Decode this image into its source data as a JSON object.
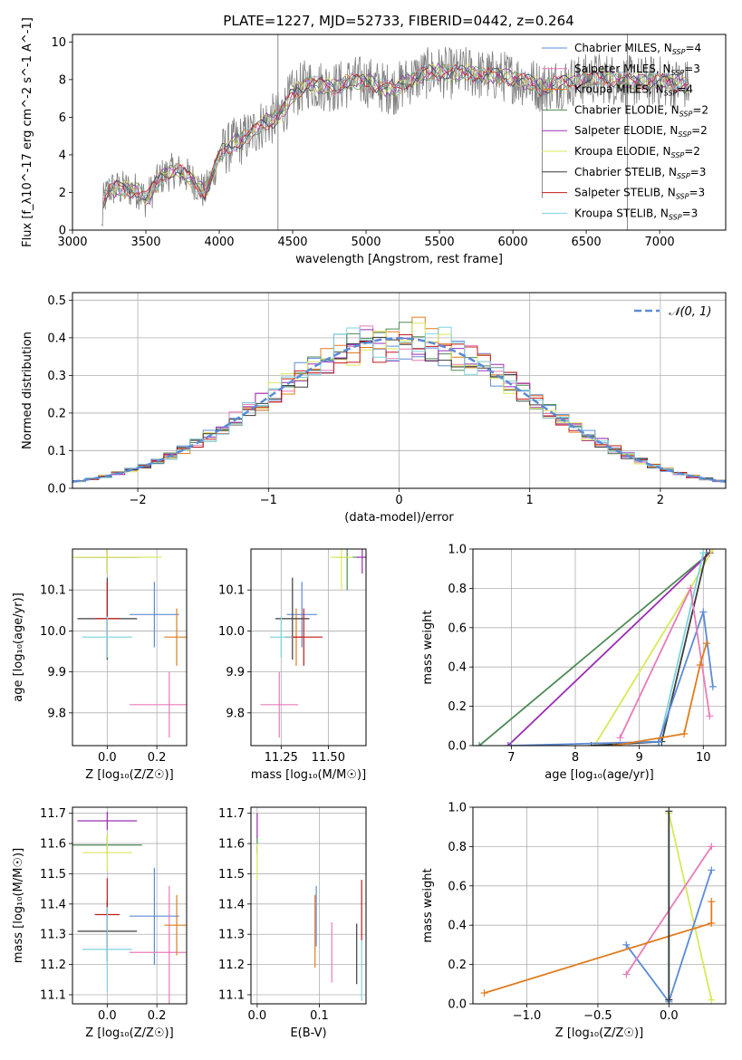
{
  "chart_data": [
    {
      "type": "line",
      "title": "PLATE=1227, MJD=52733, FIBERID=0442, z=0.264",
      "xlabel": "wavelength [Angstrom, rest frame]",
      "ylabel": "Flux [f_λ10^-17 erg cm^-2 s^-1 A^-1]",
      "xlim": [
        3000,
        7450
      ],
      "ylim": [
        0,
        10.4
      ],
      "xticks": [
        "3000",
        "3500",
        "4000",
        "4500",
        "5000",
        "5500",
        "6000",
        "6500",
        "7000"
      ],
      "yticks": [
        "0",
        "2",
        "4",
        "6",
        "8",
        "10"
      ],
      "legend_position": "right",
      "spectrum_knots": [
        [
          3200,
          0
        ],
        [
          3210,
          1.5
        ],
        [
          3250,
          2.2
        ],
        [
          3350,
          2.2
        ],
        [
          3450,
          2.1
        ],
        [
          3500,
          1.6
        ],
        [
          3600,
          2.8
        ],
        [
          3700,
          3.2
        ],
        [
          3800,
          2.8
        ],
        [
          3900,
          2.0
        ],
        [
          3950,
          2.8
        ],
        [
          4000,
          4.0
        ],
        [
          4100,
          4.6
        ],
        [
          4200,
          5.0
        ],
        [
          4300,
          5.7
        ],
        [
          4400,
          6.0
        ],
        [
          4500,
          7.2
        ],
        [
          4600,
          7.8
        ],
        [
          4700,
          7.7
        ],
        [
          4800,
          7.6
        ],
        [
          4900,
          7.9
        ],
        [
          5000,
          7.9
        ],
        [
          5100,
          7.6
        ],
        [
          5200,
          7.5
        ],
        [
          5300,
          8.0
        ],
        [
          5400,
          8.3
        ],
        [
          5500,
          8.4
        ],
        [
          5600,
          8.3
        ],
        [
          5700,
          8.4
        ],
        [
          5800,
          8.2
        ],
        [
          5900,
          8.2
        ],
        [
          6000,
          8.1
        ],
        [
          6100,
          7.9
        ],
        [
          6200,
          7.6
        ],
        [
          6300,
          7.8
        ],
        [
          6400,
          7.9
        ],
        [
          6500,
          8.0
        ],
        [
          6600,
          8.1
        ],
        [
          6700,
          8.0
        ],
        [
          6800,
          7.9
        ],
        [
          6900,
          7.9
        ],
        [
          7000,
          7.9
        ],
        [
          7100,
          7.8
        ],
        [
          7200,
          7.7
        ]
      ],
      "series": [
        {
          "name": "Chabrier MILES",
          "nssp": "4",
          "color": "#5b8bd6"
        },
        {
          "name": "Salpeter MILES",
          "nssp": "3",
          "color": "#e87bb8"
        },
        {
          "name": "Kroupa MILES",
          "nssp": "4",
          "color": "#e07c1e"
        },
        {
          "name": "Chabrier ELODIE",
          "nssp": "2",
          "color": "#4e8a56"
        },
        {
          "name": "Salpeter ELODIE",
          "nssp": "2",
          "color": "#9b2db5"
        },
        {
          "name": "Kroupa ELODIE",
          "nssp": "2",
          "color": "#d9e85a"
        },
        {
          "name": "Chabrier STELIB",
          "nssp": "3",
          "color": "#3c3c3c"
        },
        {
          "name": "Salpeter STELIB",
          "nssp": "3",
          "color": "#c21a1a"
        },
        {
          "name": "Kroupa STELIB",
          "nssp": "3",
          "color": "#7ed3df"
        }
      ]
    },
    {
      "type": "bar",
      "xlabel": "(data-model)/error",
      "ylabel": "Normed distribution",
      "xlim": [
        -2.5,
        2.5
      ],
      "ylim": [
        0,
        0.52
      ],
      "xticks": [
        "−2",
        "−1",
        "0",
        "1",
        "2"
      ],
      "yticks": [
        "0.0",
        "0.1",
        "0.2",
        "0.3",
        "0.4",
        "0.5"
      ],
      "legend": "𝒩(0, 1)",
      "curve_color": "#5b8bd6"
    },
    {
      "type": "scatter",
      "xlabel": "Z [log₁₀(Z/Z☉)]",
      "ylabel": "age  [log₁₀(age/yr)]",
      "xlim": [
        -0.14,
        0.32
      ],
      "ylim": [
        9.72,
        10.2
      ],
      "xticks": [
        "0.0",
        "0.2"
      ],
      "yticks": [
        "9.8",
        "9.9",
        "10.0",
        "10.1"
      ],
      "points": [
        {
          "color": "#5b8bd6",
          "x": 0.19,
          "y": 10.04,
          "xerr": 0.1,
          "yerr": 0.08
        },
        {
          "color": "#e87bb8",
          "x": 0.25,
          "y": 9.82,
          "xerr": 0.16,
          "yerr": 0.08
        },
        {
          "color": "#e07c1e",
          "x": 0.28,
          "y": 9.985,
          "xerr": 0.05,
          "yerr": 0.07
        },
        {
          "color": "#4e8a56",
          "x": 0.0,
          "y": 10.18,
          "xerr": 0.14,
          "yerr": 0.04
        },
        {
          "color": "#9b2db5",
          "x": 0.0,
          "y": 10.18,
          "xerr": 0.12,
          "yerr": 0.04
        },
        {
          "color": "#d9e85a",
          "x": 0.0,
          "y": 10.18,
          "xerr": 0.22,
          "yerr": 0.04
        },
        {
          "color": "#3c3c3c",
          "x": 0.0,
          "y": 10.03,
          "xerr": 0.12,
          "yerr": 0.1
        },
        {
          "color": "#c21a1a",
          "x": 0.0,
          "y": 10.03,
          "xerr": 0.05,
          "yerr": 0.09
        },
        {
          "color": "#7ed3df",
          "x": 0.0,
          "y": 9.985,
          "xerr": 0.1,
          "yerr": 0.05
        }
      ]
    },
    {
      "type": "scatter",
      "xlabel": "mass [log₁₀(M/M☉)]",
      "ylabel": "",
      "xlim": [
        11.09,
        11.7
      ],
      "ylim": [
        9.72,
        10.2
      ],
      "xticks": [
        "11.25",
        "11.50"
      ],
      "yticks": [
        "9.8",
        "9.9",
        "10.0",
        "10.1"
      ],
      "points": [
        {
          "color": "#5b8bd6",
          "x": 11.36,
          "y": 10.04,
          "xerr": 0.08,
          "yerr": 0.08
        },
        {
          "color": "#e87bb8",
          "x": 11.24,
          "y": 9.82,
          "xerr": 0.1,
          "yerr": 0.08
        },
        {
          "color": "#e07c1e",
          "x": 11.33,
          "y": 9.985,
          "xerr": 0.03,
          "yerr": 0.07
        },
        {
          "color": "#4e8a56",
          "x": 11.6,
          "y": 10.18,
          "xerr": 0.06,
          "yerr": 0.08
        },
        {
          "color": "#9b2db5",
          "x": 11.68,
          "y": 10.18,
          "xerr": 0.03,
          "yerr": 0.04
        },
        {
          "color": "#d9e85a",
          "x": 11.57,
          "y": 10.18,
          "xerr": 0.06,
          "yerr": 0.08
        },
        {
          "color": "#3c3c3c",
          "x": 11.31,
          "y": 10.03,
          "xerr": 0.09,
          "yerr": 0.1
        },
        {
          "color": "#c21a1a",
          "x": 11.37,
          "y": 9.985,
          "xerr": 0.1,
          "yerr": 0.07
        },
        {
          "color": "#7ed3df",
          "x": 11.25,
          "y": 9.985,
          "xerr": 0.06,
          "yerr": 0.05
        }
      ]
    },
    {
      "type": "line",
      "xlabel": "age  [log₁₀(age/yr)]",
      "ylabel": "mass weight",
      "xlim": [
        6.4,
        10.35
      ],
      "ylim": [
        0,
        1
      ],
      "xticks": [
        "7",
        "8",
        "9",
        "10"
      ],
      "yticks": [
        "0.0",
        "0.2",
        "0.4",
        "0.6",
        "0.8",
        "1.0"
      ],
      "series": [
        {
          "color": "#4e8a56",
          "points": [
            [
              6.5,
              0
            ],
            [
              10.1,
              0.98
            ]
          ]
        },
        {
          "color": "#9b2db5",
          "points": [
            [
              6.95,
              0
            ],
            [
              10.1,
              0.98
            ]
          ]
        },
        {
          "color": "#d9e85a",
          "points": [
            [
              8.3,
              0
            ],
            [
              9.8,
              0.8
            ],
            [
              10.15,
              1.0
            ]
          ]
        },
        {
          "color": "#3c3c3c",
          "points": [
            [
              8.25,
              0
            ],
            [
              9.35,
              0.02
            ],
            [
              10.05,
              0.98
            ]
          ]
        },
        {
          "color": "#7ed3df",
          "points": [
            [
              9.3,
              0.0
            ],
            [
              10.0,
              0.98
            ]
          ]
        },
        {
          "color": "#5b8bd6",
          "points": [
            [
              7.0,
              0
            ],
            [
              9.3,
              0.02
            ],
            [
              10.0,
              0.68
            ],
            [
              10.15,
              0.3
            ]
          ]
        },
        {
          "color": "#e87bb8",
          "points": [
            [
              8.7,
              0.04
            ],
            [
              9.8,
              0.8
            ],
            [
              10.1,
              0.15
            ]
          ]
        },
        {
          "color": "#e07c1e",
          "points": [
            [
              8.6,
              0.0
            ],
            [
              9.7,
              0.06
            ],
            [
              9.95,
              0.41
            ],
            [
              10.05,
              0.52
            ]
          ]
        }
      ]
    },
    {
      "type": "scatter",
      "xlabel": "Z [log₁₀(Z/Z☉)]",
      "ylabel": "mass [log₁₀(M/M☉)]",
      "xlim": [
        -0.14,
        0.32
      ],
      "ylim": [
        11.07,
        11.72
      ],
      "xticks": [
        "0.0",
        "0.2"
      ],
      "yticks": [
        "11.1",
        "11.2",
        "11.3",
        "11.4",
        "11.5",
        "11.6",
        "11.7"
      ],
      "points": [
        {
          "color": "#5b8bd6",
          "x": 0.19,
          "y": 11.36,
          "xerr": 0.1,
          "yerr": 0.16
        },
        {
          "color": "#e87bb8",
          "x": 0.25,
          "y": 11.24,
          "xerr": 0.16,
          "yerr": 0.22
        },
        {
          "color": "#e07c1e",
          "x": 0.28,
          "y": 11.33,
          "xerr": 0.05,
          "yerr": 0.1
        },
        {
          "color": "#4e8a56",
          "x": 0.0,
          "y": 11.595,
          "xerr": 0.14,
          "yerr": 0.03
        },
        {
          "color": "#9b2db5",
          "x": 0.0,
          "y": 11.675,
          "xerr": 0.12,
          "yerr": 0.03
        },
        {
          "color": "#d9e85a",
          "x": 0.0,
          "y": 11.57,
          "xerr": 0.1,
          "yerr": 0.06
        },
        {
          "color": "#3c3c3c",
          "x": 0.0,
          "y": 11.31,
          "xerr": 0.12,
          "yerr": 0.1
        },
        {
          "color": "#c21a1a",
          "x": 0.0,
          "y": 11.365,
          "xerr": 0.05,
          "yerr": 0.12
        },
        {
          "color": "#7ed3df",
          "x": 0.0,
          "y": 11.25,
          "xerr": 0.1,
          "yerr": 0.14
        }
      ]
    },
    {
      "type": "scatter",
      "xlabel": "E(B-V)",
      "ylabel": "",
      "xlim": [
        -0.01,
        0.175
      ],
      "ylim": [
        11.07,
        11.72
      ],
      "xticks": [
        "0.0",
        "0.1"
      ],
      "yticks": [
        "11.1",
        "11.2",
        "11.3",
        "11.4",
        "11.5",
        "11.6",
        "11.7"
      ],
      "points": [
        {
          "color": "#5b8bd6",
          "x": 0.095,
          "y": 11.36,
          "yerr": 0.1
        },
        {
          "color": "#e87bb8",
          "x": 0.12,
          "y": 11.24,
          "yerr": 0.1
        },
        {
          "color": "#e07c1e",
          "x": 0.093,
          "y": 11.31,
          "yerr": 0.12
        },
        {
          "color": "#4e8a56",
          "x": 0.0,
          "y": 11.595,
          "yerr": 0.03
        },
        {
          "color": "#9b2db5",
          "x": 0.0,
          "y": 11.66,
          "yerr": 0.04
        },
        {
          "color": "#d9e85a",
          "x": 0.0,
          "y": 11.54,
          "yerr": 0.06
        },
        {
          "color": "#3c3c3c",
          "x": 0.16,
          "y": 11.235,
          "yerr": 0.1
        },
        {
          "color": "#c21a1a",
          "x": 0.168,
          "y": 11.38,
          "yerr": 0.1
        },
        {
          "color": "#7ed3df",
          "x": 0.168,
          "y": 11.18,
          "yerr": 0.1
        }
      ]
    },
    {
      "type": "line",
      "xlabel": "Z [log₁₀(Z/Z☉)]",
      "ylabel": "mass weight",
      "xlim": [
        -1.38,
        0.4
      ],
      "ylim": [
        0,
        1
      ],
      "xticks": [
        "−1.0",
        "−0.5",
        "0.0"
      ],
      "yticks": [
        "0.0",
        "0.2",
        "0.4",
        "0.6",
        "0.8",
        "1.0"
      ],
      "series": [
        {
          "color": "#7ed3df",
          "points": [
            [
              0,
              0.02
            ],
            [
              0,
              0.97
            ]
          ]
        },
        {
          "color": "#d9e85a",
          "points": [
            [
              0,
              0.97
            ],
            [
              0.3,
              0.02
            ]
          ]
        },
        {
          "color": "#5b8bd6",
          "points": [
            [
              -0.3,
              0.3
            ],
            [
              0,
              0.01
            ],
            [
              0.3,
              0.68
            ]
          ]
        },
        {
          "color": "#e87bb8",
          "points": [
            [
              -0.3,
              0.15
            ],
            [
              0.3,
              0.8
            ]
          ]
        },
        {
          "color": "#e07c1e",
          "points": [
            [
              -1.3,
              0.055
            ],
            [
              0.3,
              0.41
            ],
            [
              0.3,
              0.52
            ]
          ]
        },
        {
          "color": "#3c3c3c",
          "points": [
            [
              0,
              0.02
            ],
            [
              0,
              0.98
            ]
          ]
        }
      ]
    }
  ]
}
